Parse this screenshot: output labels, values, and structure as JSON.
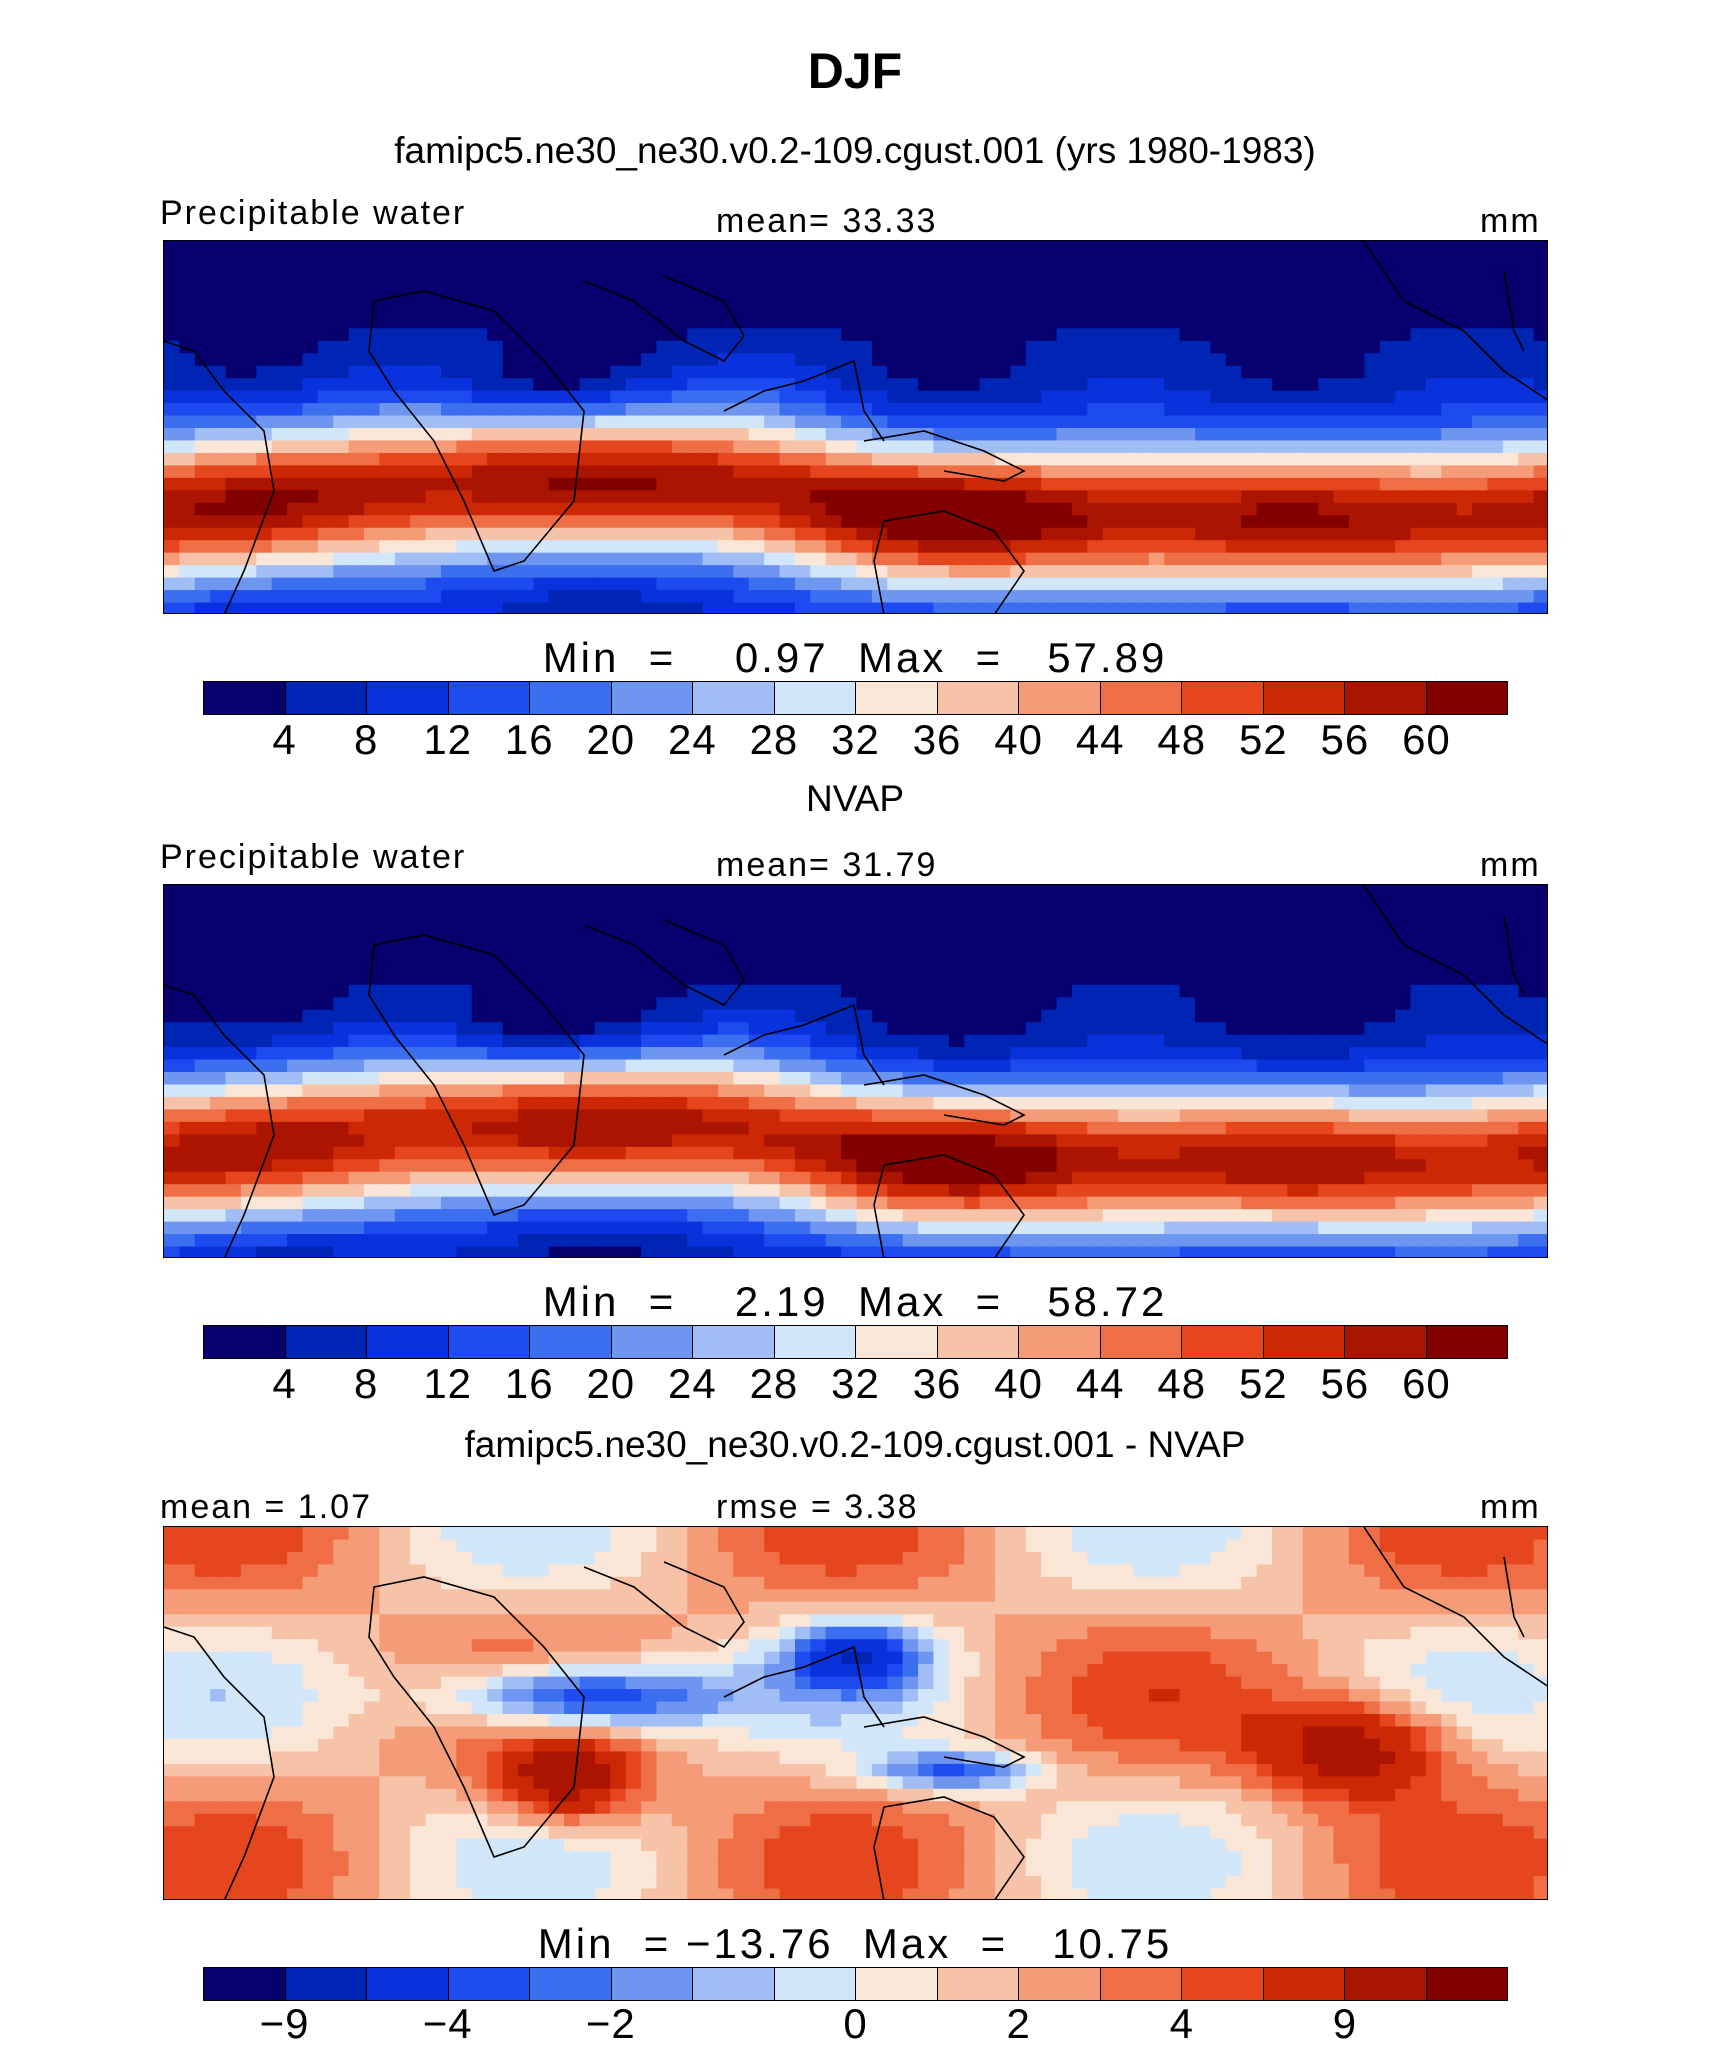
{
  "title": "DJF",
  "colors": {
    "diverging": [
      "#08006e",
      "#0024b4",
      "#0a32dc",
      "#1e4bf0",
      "#3c6ef0",
      "#6e96f0",
      "#a0bef5",
      "#d2e6fa",
      "#fae6d7",
      "#f7c3a8",
      "#f59b78",
      "#f06e46",
      "#e6461e",
      "#cd2805",
      "#aa1400",
      "#820000"
    ]
  },
  "panels": [
    {
      "heading": "famipc5.ne30_ne30.v0.2-109.cgust.001 (yrs 1980-1983)",
      "left_label": "Precipitable water",
      "center_label": "mean=   33.33",
      "right_label": "mm",
      "minmax": "Min  =    0.97  Max  =   57.89",
      "colorbar_ticks": [
        "4",
        "8",
        "12",
        "16",
        "20",
        "24",
        "28",
        "32",
        "36",
        "40",
        "44",
        "48",
        "52",
        "56",
        "60"
      ]
    },
    {
      "heading": "NVAP",
      "left_label": "Precipitable water",
      "center_label": "mean=   31.79",
      "right_label": "mm",
      "minmax": "Min  =    2.19  Max  =   58.72",
      "colorbar_ticks": [
        "4",
        "8",
        "12",
        "16",
        "20",
        "24",
        "28",
        "32",
        "36",
        "40",
        "44",
        "48",
        "52",
        "56",
        "60"
      ]
    },
    {
      "heading": "famipc5.ne30_ne30.v0.2-109.cgust.001 - NVAP",
      "left_label": "mean =    1.07",
      "center_label": "rmse =    3.38",
      "right_label": "mm",
      "minmax": "Min  = −13.76  Max  =   10.75",
      "colorbar_ticks": [
        "−9",
        "−4",
        "−2",
        "0",
        "2",
        "4",
        "9"
      ]
    }
  ],
  "chart_data": [
    {
      "type": "heatmap",
      "title": "famipc5.ne30_ne30.v0.2-109.cgust.001 (yrs 1980-1983)",
      "variable": "Precipitable water",
      "units": "mm",
      "mean": 33.33,
      "min": 0.97,
      "max": 57.89,
      "contour_levels": [
        4,
        8,
        12,
        16,
        20,
        24,
        28,
        32,
        36,
        40,
        44,
        48,
        52,
        56,
        60
      ],
      "lon_range": [
        0,
        360
      ],
      "lat_range": [
        -40,
        70
      ]
    },
    {
      "type": "heatmap",
      "title": "NVAP",
      "variable": "Precipitable water",
      "units": "mm",
      "mean": 31.79,
      "min": 2.19,
      "max": 58.72,
      "contour_levels": [
        4,
        8,
        12,
        16,
        20,
        24,
        28,
        32,
        36,
        40,
        44,
        48,
        52,
        56,
        60
      ],
      "lon_range": [
        0,
        360
      ],
      "lat_range": [
        -40,
        70
      ]
    },
    {
      "type": "heatmap",
      "title": "famipc5.ne30_ne30.v0.2-109.cgust.001 - NVAP",
      "units": "mm",
      "mean": 1.07,
      "rmse": 3.38,
      "min": -13.76,
      "max": 10.75,
      "colorbar_tick_labels": [
        -9,
        -4,
        -2,
        0,
        2,
        4,
        9
      ],
      "lon_range": [
        0,
        360
      ],
      "lat_range": [
        -40,
        70
      ]
    }
  ]
}
